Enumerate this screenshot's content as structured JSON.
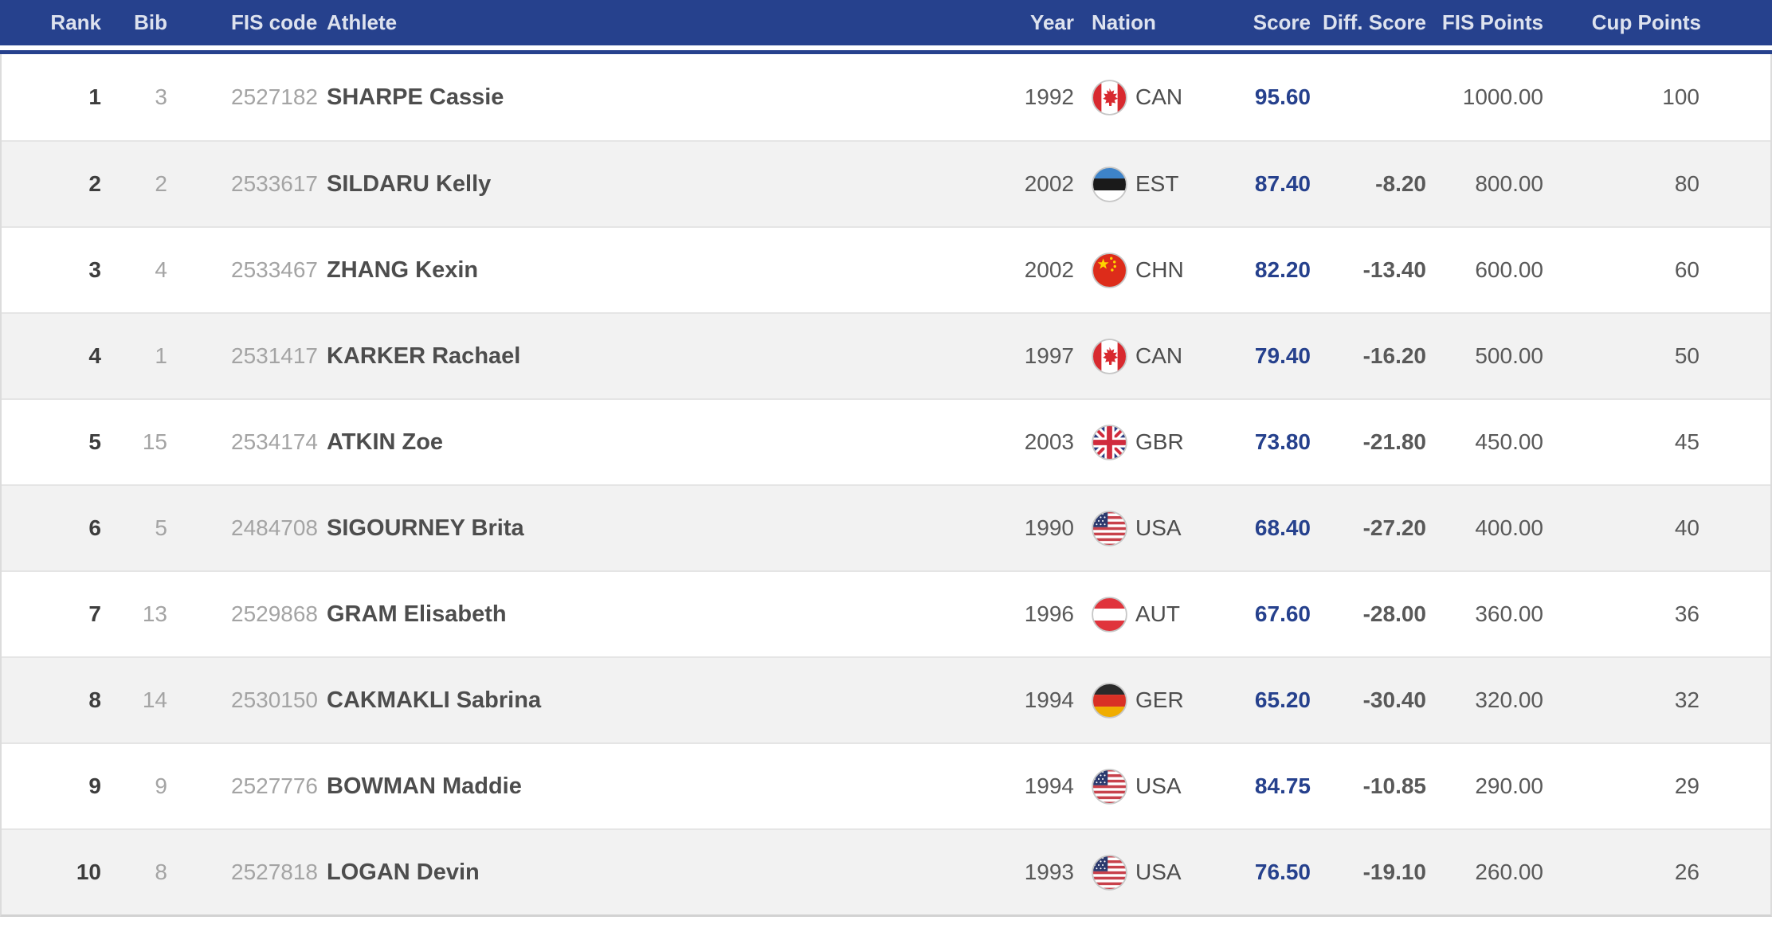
{
  "table": {
    "columns": [
      {
        "key": "rank",
        "label": "Rank"
      },
      {
        "key": "bib",
        "label": "Bib"
      },
      {
        "key": "fis_code",
        "label": "FIS code"
      },
      {
        "key": "athlete",
        "label": "Athlete"
      },
      {
        "key": "year",
        "label": "Year"
      },
      {
        "key": "nation",
        "label": "Nation"
      },
      {
        "key": "score",
        "label": "Score"
      },
      {
        "key": "diff_score",
        "label": "Diff. Score"
      },
      {
        "key": "fis_points",
        "label": "FIS Points"
      },
      {
        "key": "cup_points",
        "label": "Cup Points"
      }
    ],
    "rows": [
      {
        "rank": "1",
        "bib": "3",
        "fis_code": "2527182",
        "athlete": "SHARPE Cassie",
        "year": "1992",
        "nation": "CAN",
        "flag_icon": "flag-can-icon",
        "score": "95.60",
        "diff_score": "",
        "fis_points": "1000.00",
        "cup_points": "100"
      },
      {
        "rank": "2",
        "bib": "2",
        "fis_code": "2533617",
        "athlete": "SILDARU Kelly",
        "year": "2002",
        "nation": "EST",
        "flag_icon": "flag-est-icon",
        "score": "87.40",
        "diff_score": "-8.20",
        "fis_points": "800.00",
        "cup_points": "80"
      },
      {
        "rank": "3",
        "bib": "4",
        "fis_code": "2533467",
        "athlete": "ZHANG Kexin",
        "year": "2002",
        "nation": "CHN",
        "flag_icon": "flag-chn-icon",
        "score": "82.20",
        "diff_score": "-13.40",
        "fis_points": "600.00",
        "cup_points": "60"
      },
      {
        "rank": "4",
        "bib": "1",
        "fis_code": "2531417",
        "athlete": "KARKER Rachael",
        "year": "1997",
        "nation": "CAN",
        "flag_icon": "flag-can-icon",
        "score": "79.40",
        "diff_score": "-16.20",
        "fis_points": "500.00",
        "cup_points": "50"
      },
      {
        "rank": "5",
        "bib": "15",
        "fis_code": "2534174",
        "athlete": "ATKIN Zoe",
        "year": "2003",
        "nation": "GBR",
        "flag_icon": "flag-gbr-icon",
        "score": "73.80",
        "diff_score": "-21.80",
        "fis_points": "450.00",
        "cup_points": "45"
      },
      {
        "rank": "6",
        "bib": "5",
        "fis_code": "2484708",
        "athlete": "SIGOURNEY Brita",
        "year": "1990",
        "nation": "USA",
        "flag_icon": "flag-usa-icon",
        "score": "68.40",
        "diff_score": "-27.20",
        "fis_points": "400.00",
        "cup_points": "40"
      },
      {
        "rank": "7",
        "bib": "13",
        "fis_code": "2529868",
        "athlete": "GRAM Elisabeth",
        "year": "1996",
        "nation": "AUT",
        "flag_icon": "flag-aut-icon",
        "score": "67.60",
        "diff_score": "-28.00",
        "fis_points": "360.00",
        "cup_points": "36"
      },
      {
        "rank": "8",
        "bib": "14",
        "fis_code": "2530150",
        "athlete": "CAKMAKLI Sabrina",
        "year": "1994",
        "nation": "GER",
        "flag_icon": "flag-ger-icon",
        "score": "65.20",
        "diff_score": "-30.40",
        "fis_points": "320.00",
        "cup_points": "32"
      },
      {
        "rank": "9",
        "bib": "9",
        "fis_code": "2527776",
        "athlete": "BOWMAN Maddie",
        "year": "1994",
        "nation": "USA",
        "flag_icon": "flag-usa-icon",
        "score": "84.75",
        "diff_score": "-10.85",
        "fis_points": "290.00",
        "cup_points": "29"
      },
      {
        "rank": "10",
        "bib": "8",
        "fis_code": "2527818",
        "athlete": "LOGAN Devin",
        "year": "1993",
        "nation": "USA",
        "flag_icon": "flag-usa-icon",
        "score": "76.50",
        "diff_score": "-19.10",
        "fis_points": "260.00",
        "cup_points": "26"
      }
    ]
  },
  "colors": {
    "header_bg": "#26418d",
    "header_text": "#dde2ee",
    "score_text": "#26418d",
    "row_bg": "#ffffff",
    "row_alt_bg": "#f2f2f2",
    "row_border": "#e5e5e5",
    "rank_text": "#3d3d3d",
    "muted_text": "#a4a4a4",
    "athlete_text": "#4d4d4d",
    "value_text": "#595959"
  }
}
